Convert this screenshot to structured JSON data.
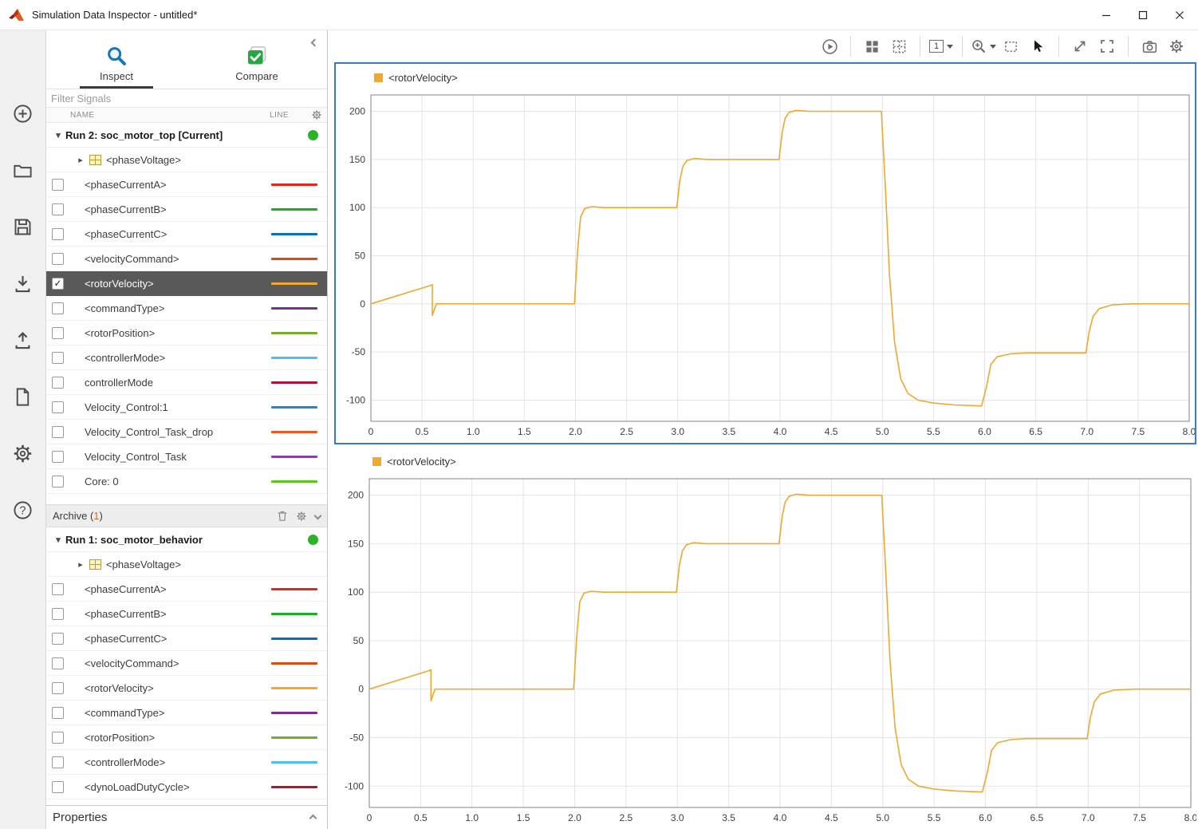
{
  "window": {
    "title": "Simulation Data Inspector - untitled*"
  },
  "icons": {
    "collapse_triangle": "▾",
    "expand_triangle": "▸",
    "check": "✓",
    "help": "?"
  },
  "nav_strip": {
    "icons": [
      "add",
      "open",
      "save",
      "import",
      "export",
      "create-report",
      "preferences",
      "help"
    ]
  },
  "sidebar": {
    "tabs": [
      {
        "label": "Inspect"
      },
      {
        "label": "Compare"
      }
    ],
    "active_tab": "Inspect",
    "filter_placeholder": "Filter Signals",
    "columns": {
      "name": "NAME",
      "line": "LINE"
    },
    "archive": {
      "label": "Archive",
      "count": "1"
    },
    "properties_label": "Properties",
    "run_status_color": "#2bb22b",
    "rows": [
      {
        "type": "run",
        "label": "Run 2: soc_motor_top [Current]",
        "status_color": "#2bb22b"
      },
      {
        "type": "group",
        "label": "<phaseVoltage>"
      },
      {
        "type": "signal",
        "label": "<phaseCurrentA>",
        "color": "#e8251d",
        "checked": false,
        "selected": false
      },
      {
        "type": "signal",
        "label": "<phaseCurrentB>",
        "color": "#17b01e",
        "checked": false,
        "selected": false
      },
      {
        "type": "signal",
        "label": "<phaseCurrentC>",
        "color": "#0072bd",
        "checked": false,
        "selected": false
      },
      {
        "type": "signal",
        "label": "<velocityCommand>",
        "color": "#dd4a11",
        "checked": false,
        "selected": false
      },
      {
        "type": "signal",
        "label": "<rotorVelocity>",
        "color": "#f0a830",
        "checked": true,
        "selected": true
      },
      {
        "type": "signal",
        "label": "<commandType>",
        "color": "#7e2f8e",
        "checked": false,
        "selected": false
      },
      {
        "type": "signal",
        "label": "<rotorPosition>",
        "color": "#77ac30",
        "checked": false,
        "selected": false
      },
      {
        "type": "signal",
        "label": "<controllerMode>",
        "color": "#4dbeee",
        "checked": false,
        "selected": false
      },
      {
        "type": "signal",
        "label": "controllerMode",
        "color": "#b51235",
        "checked": false,
        "selected": false
      },
      {
        "type": "signal",
        "label": "Velocity_Control:1",
        "color": "#1e88d2",
        "checked": false,
        "selected": false
      },
      {
        "type": "signal",
        "label": "Velocity_Control_Task_drop",
        "color": "#f25822",
        "checked": false,
        "selected": false
      },
      {
        "type": "signal",
        "label": "Velocity_Control_Task",
        "color": "#a228d8",
        "checked": false,
        "selected": false
      },
      {
        "type": "signal",
        "label": "Core: 0",
        "color": "#56c91c",
        "checked": false,
        "selected": false
      },
      {
        "type": "spacer"
      },
      {
        "type": "archive"
      },
      {
        "type": "run",
        "label": "Run 1: soc_motor_behavior",
        "status_color": "#2bb22b"
      },
      {
        "type": "group",
        "label": "<phaseVoltage>"
      },
      {
        "type": "signal",
        "label": "<phaseCurrentA>",
        "color": "#e8251d",
        "checked": false,
        "selected": false
      },
      {
        "type": "signal",
        "label": "<phaseCurrentB>",
        "color": "#17b01e",
        "checked": false,
        "selected": false
      },
      {
        "type": "signal",
        "label": "<phaseCurrentC>",
        "color": "#0072bd",
        "checked": false,
        "selected": false
      },
      {
        "type": "signal",
        "label": "<velocityCommand>",
        "color": "#dd4a11",
        "checked": false,
        "selected": false
      },
      {
        "type": "signal",
        "label": "<rotorVelocity>",
        "color": "#f0a830",
        "checked": false,
        "selected": false
      },
      {
        "type": "signal",
        "label": "<commandType>",
        "color": "#7e2f8e",
        "checked": false,
        "selected": false
      },
      {
        "type": "signal",
        "label": "<rotorPosition>",
        "color": "#77ac30",
        "checked": false,
        "selected": false
      },
      {
        "type": "signal",
        "label": "<controllerMode>",
        "color": "#4dbeee",
        "checked": false,
        "selected": false
      },
      {
        "type": "signal",
        "label": "<dynoLoadDutyCycle>",
        "color": "#b51235",
        "checked": false,
        "selected": false
      }
    ]
  },
  "plot_toolbar": {
    "view_count": "1"
  },
  "plots": [
    {
      "legend": "<rotorVelocity>",
      "selected": true
    },
    {
      "legend": "<rotorVelocity>",
      "selected": false
    }
  ],
  "chart_data": [
    {
      "type": "line",
      "title": "<rotorVelocity>",
      "legend_position": "top-left",
      "grid": true,
      "xlim": [
        0,
        8
      ],
      "ylim": [
        -122,
        217
      ],
      "xtick_values": [
        0,
        0.5,
        1,
        1.5,
        2,
        2.5,
        3,
        3.5,
        4,
        4.5,
        5,
        5.5,
        6,
        6.5,
        7,
        7.5,
        8
      ],
      "xtick_labels": [
        "0",
        "0.5",
        "1.0",
        "1.5",
        "2.0",
        "2.5",
        "3.0",
        "3.5",
        "4.0",
        "4.5",
        "5.0",
        "5.5",
        "6.0",
        "6.5",
        "7.0",
        "7.5",
        "8.0"
      ],
      "ytick_values": [
        -100,
        -50,
        0,
        50,
        100,
        150,
        200
      ],
      "ytick_labels": [
        "-100",
        "-50",
        "0",
        "50",
        "100",
        "150",
        "200"
      ],
      "series": [
        {
          "name": "<rotorVelocity>",
          "color": "#efa830",
          "points": [
            [
              0,
              0
            ],
            [
              0.58,
              19
            ],
            [
              0.6,
              20
            ],
            [
              0.6,
              -12
            ],
            [
              0.64,
              0
            ],
            [
              1.99,
              0
            ],
            [
              2.02,
              55
            ],
            [
              2.05,
              90
            ],
            [
              2.09,
              99
            ],
            [
              2.16,
              101
            ],
            [
              2.28,
              100
            ],
            [
              2.99,
              100
            ],
            [
              3.02,
              128
            ],
            [
              3.05,
              143
            ],
            [
              3.09,
              149
            ],
            [
              3.16,
              151
            ],
            [
              3.28,
              150
            ],
            [
              3.99,
              150
            ],
            [
              4.02,
              178
            ],
            [
              4.05,
              193
            ],
            [
              4.09,
              199
            ],
            [
              4.16,
              201
            ],
            [
              4.28,
              200
            ],
            [
              4.99,
              200
            ],
            [
              5.03,
              120
            ],
            [
              5.07,
              30
            ],
            [
              5.12,
              -40
            ],
            [
              5.18,
              -78
            ],
            [
              5.25,
              -93
            ],
            [
              5.35,
              -100
            ],
            [
              5.5,
              -103
            ],
            [
              5.7,
              -105
            ],
            [
              5.97,
              -106
            ],
            [
              6.02,
              -85
            ],
            [
              6.06,
              -63
            ],
            [
              6.12,
              -55
            ],
            [
              6.25,
              -52
            ],
            [
              6.4,
              -51
            ],
            [
              6.99,
              -51
            ],
            [
              7.02,
              -30
            ],
            [
              7.06,
              -13
            ],
            [
              7.12,
              -5
            ],
            [
              7.25,
              -1
            ],
            [
              7.45,
              0
            ],
            [
              8,
              0
            ]
          ]
        }
      ]
    },
    {
      "type": "line",
      "title": "<rotorVelocity>",
      "legend_position": "top-left",
      "grid": true,
      "xlim": [
        0,
        8
      ],
      "ylim": [
        -122,
        217
      ],
      "xtick_values": [
        0,
        0.5,
        1,
        1.5,
        2,
        2.5,
        3,
        3.5,
        4,
        4.5,
        5,
        5.5,
        6,
        6.5,
        7,
        7.5,
        8
      ],
      "xtick_labels": [
        "0",
        "0.5",
        "1.0",
        "1.5",
        "2.0",
        "2.5",
        "3.0",
        "3.5",
        "4.0",
        "4.5",
        "5.0",
        "5.5",
        "6.0",
        "6.5",
        "7.0",
        "7.5",
        "8.0"
      ],
      "ytick_values": [
        -100,
        -50,
        0,
        50,
        100,
        150,
        200
      ],
      "ytick_labels": [
        "-100",
        "-50",
        "0",
        "50",
        "100",
        "150",
        "200"
      ],
      "series": [
        {
          "name": "<rotorVelocity>",
          "color": "#efa830",
          "points": [
            [
              0,
              0
            ],
            [
              0.58,
              19
            ],
            [
              0.6,
              20
            ],
            [
              0.6,
              -12
            ],
            [
              0.64,
              0
            ],
            [
              1.99,
              0
            ],
            [
              2.02,
              55
            ],
            [
              2.05,
              90
            ],
            [
              2.09,
              99
            ],
            [
              2.16,
              101
            ],
            [
              2.28,
              100
            ],
            [
              2.99,
              100
            ],
            [
              3.02,
              128
            ],
            [
              3.05,
              143
            ],
            [
              3.09,
              149
            ],
            [
              3.16,
              151
            ],
            [
              3.28,
              150
            ],
            [
              3.99,
              150
            ],
            [
              4.02,
              178
            ],
            [
              4.05,
              193
            ],
            [
              4.09,
              199
            ],
            [
              4.16,
              201
            ],
            [
              4.28,
              200
            ],
            [
              4.99,
              200
            ],
            [
              5.03,
              120
            ],
            [
              5.07,
              30
            ],
            [
              5.12,
              -40
            ],
            [
              5.18,
              -78
            ],
            [
              5.25,
              -93
            ],
            [
              5.35,
              -100
            ],
            [
              5.5,
              -103
            ],
            [
              5.7,
              -105
            ],
            [
              5.97,
              -106
            ],
            [
              6.02,
              -85
            ],
            [
              6.06,
              -63
            ],
            [
              6.12,
              -55
            ],
            [
              6.25,
              -52
            ],
            [
              6.4,
              -51
            ],
            [
              6.99,
              -51
            ],
            [
              7.02,
              -30
            ],
            [
              7.06,
              -13
            ],
            [
              7.12,
              -5
            ],
            [
              7.25,
              -1
            ],
            [
              7.45,
              0
            ],
            [
              8,
              0
            ]
          ]
        }
      ]
    }
  ]
}
